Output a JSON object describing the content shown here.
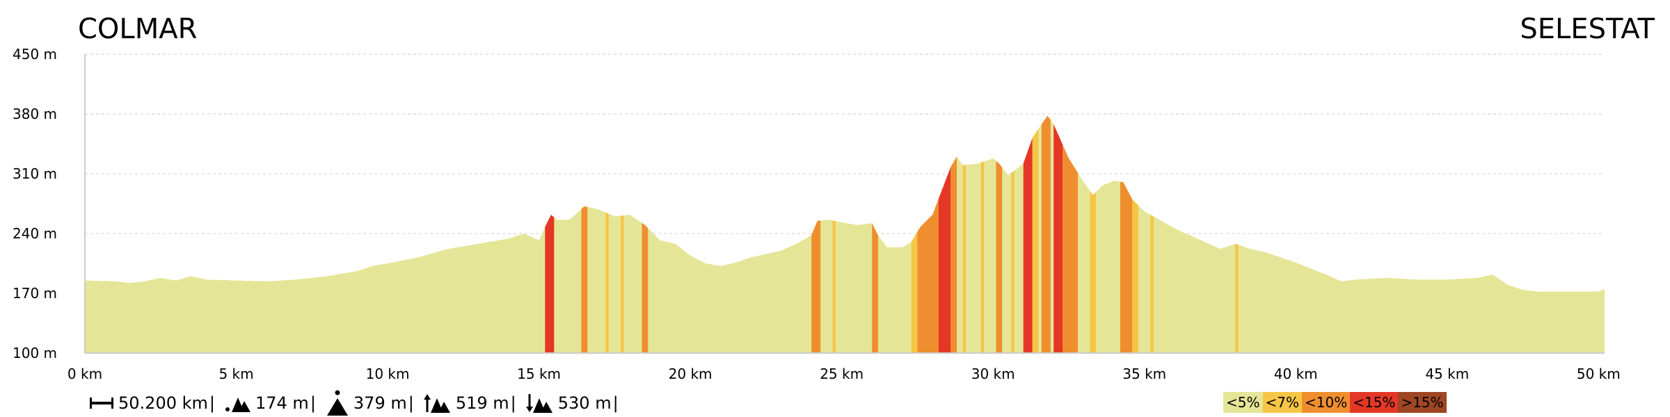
{
  "header": {
    "start": "COLMAR",
    "end": "SELESTAT"
  },
  "chart_data": {
    "type": "area",
    "xlabel": "",
    "ylabel": "",
    "xlim": [
      0,
      50.2
    ],
    "ylim": [
      100,
      450
    ],
    "x_ticks": [
      {
        "v": 0,
        "label": "0 km"
      },
      {
        "v": 5,
        "label": "5 km"
      },
      {
        "v": 10,
        "label": "10 km"
      },
      {
        "v": 15,
        "label": "15 km"
      },
      {
        "v": 20,
        "label": "20 km"
      },
      {
        "v": 25,
        "label": "25 km"
      },
      {
        "v": 30,
        "label": "30 km"
      },
      {
        "v": 35,
        "label": "35 km"
      },
      {
        "v": 40,
        "label": "40 km"
      },
      {
        "v": 45,
        "label": "45 km"
      },
      {
        "v": 50,
        "label": "50 km"
      }
    ],
    "y_ticks": [
      {
        "v": 100,
        "label": "100 m"
      },
      {
        "v": 170,
        "label": "170 m"
      },
      {
        "v": 240,
        "label": "240 m"
      },
      {
        "v": 310,
        "label": "310 m"
      },
      {
        "v": 380,
        "label": "380 m"
      },
      {
        "v": 450,
        "label": "450 m"
      }
    ],
    "grid": true,
    "profile": [
      [
        0,
        185
      ],
      [
        1,
        184
      ],
      [
        1.5,
        182
      ],
      [
        2,
        184
      ],
      [
        2.5,
        188
      ],
      [
        3,
        185
      ],
      [
        3.5,
        190
      ],
      [
        4,
        186
      ],
      [
        5,
        185
      ],
      [
        6,
        184
      ],
      [
        7,
        186
      ],
      [
        8,
        190
      ],
      [
        9,
        196
      ],
      [
        9.5,
        202
      ],
      [
        10,
        205
      ],
      [
        11,
        212
      ],
      [
        12,
        222
      ],
      [
        13,
        228
      ],
      [
        14,
        234
      ],
      [
        14.5,
        240
      ],
      [
        15,
        232
      ],
      [
        15.2,
        248
      ],
      [
        15.4,
        262
      ],
      [
        15.6,
        256
      ],
      [
        16,
        256
      ],
      [
        16.2,
        262
      ],
      [
        16.5,
        272
      ],
      [
        17,
        268
      ],
      [
        17.5,
        260
      ],
      [
        18,
        262
      ],
      [
        18.5,
        250
      ],
      [
        19,
        232
      ],
      [
        19.5,
        228
      ],
      [
        20,
        214
      ],
      [
        20.5,
        205
      ],
      [
        21,
        202
      ],
      [
        21.5,
        206
      ],
      [
        22,
        212
      ],
      [
        23,
        220
      ],
      [
        23.5,
        228
      ],
      [
        24,
        238
      ],
      [
        24.2,
        255
      ],
      [
        24.6,
        256
      ],
      [
        25,
        253
      ],
      [
        25.5,
        250
      ],
      [
        26,
        252
      ],
      [
        26.2,
        238
      ],
      [
        26.5,
        224
      ],
      [
        27,
        224
      ],
      [
        27.3,
        230
      ],
      [
        27.6,
        248
      ],
      [
        28,
        262
      ],
      [
        28.3,
        290
      ],
      [
        28.6,
        318
      ],
      [
        28.8,
        330
      ],
      [
        29,
        320
      ],
      [
        29.5,
        322
      ],
      [
        30,
        328
      ],
      [
        30.2,
        322
      ],
      [
        30.5,
        308
      ],
      [
        31,
        322
      ],
      [
        31.3,
        352
      ],
      [
        31.6,
        368
      ],
      [
        31.8,
        378
      ],
      [
        32,
        368
      ],
      [
        32.5,
        328
      ],
      [
        33,
        300
      ],
      [
        33.3,
        285
      ],
      [
        33.6,
        296
      ],
      [
        34,
        302
      ],
      [
        34.3,
        300
      ],
      [
        34.6,
        280
      ],
      [
        35,
        266
      ],
      [
        35.5,
        256
      ],
      [
        36,
        246
      ],
      [
        36.5,
        238
      ],
      [
        37,
        230
      ],
      [
        37.5,
        222
      ],
      [
        38,
        228
      ],
      [
        38.5,
        222
      ],
      [
        39,
        218
      ],
      [
        40,
        206
      ],
      [
        41,
        192
      ],
      [
        41.5,
        184
      ],
      [
        42,
        186
      ],
      [
        43,
        188
      ],
      [
        44,
        186
      ],
      [
        45,
        186
      ],
      [
        46,
        188
      ],
      [
        46.5,
        192
      ],
      [
        47,
        180
      ],
      [
        47.5,
        174
      ],
      [
        48,
        172
      ],
      [
        49,
        172
      ],
      [
        50,
        172
      ],
      [
        50.2,
        175
      ]
    ],
    "segments": [
      {
        "x0": 15.2,
        "x1": 15.5,
        "class": "<15%"
      },
      {
        "x0": 16.4,
        "x1": 16.6,
        "class": "<10%"
      },
      {
        "x0": 17.2,
        "x1": 17.3,
        "class": "<7%"
      },
      {
        "x0": 17.7,
        "x1": 17.8,
        "class": "<7%"
      },
      {
        "x0": 18.4,
        "x1": 18.6,
        "class": "<10%"
      },
      {
        "x0": 24.0,
        "x1": 24.3,
        "class": "<10%"
      },
      {
        "x0": 24.7,
        "x1": 24.8,
        "class": "<7%"
      },
      {
        "x0": 26.0,
        "x1": 26.2,
        "class": "<10%"
      },
      {
        "x0": 27.3,
        "x1": 27.5,
        "class": "<7%"
      },
      {
        "x0": 27.5,
        "x1": 27.8,
        "class": "<10%"
      },
      {
        "x0": 27.8,
        "x1": 28.2,
        "class": "<10%"
      },
      {
        "x0": 28.2,
        "x1": 28.6,
        "class": "<15%"
      },
      {
        "x0": 28.6,
        "x1": 28.8,
        "class": "<10%"
      },
      {
        "x0": 29.0,
        "x1": 29.1,
        "class": "<7%"
      },
      {
        "x0": 29.6,
        "x1": 29.7,
        "class": "<7%"
      },
      {
        "x0": 30.1,
        "x1": 30.3,
        "class": "<10%"
      },
      {
        "x0": 30.6,
        "x1": 30.7,
        "class": "<7%"
      },
      {
        "x0": 31.0,
        "x1": 31.3,
        "class": "<15%"
      },
      {
        "x0": 31.3,
        "x1": 31.5,
        "class": "<7%"
      },
      {
        "x0": 31.6,
        "x1": 31.9,
        "class": "<10%"
      },
      {
        "x0": 32.0,
        "x1": 32.3,
        "class": "<15%"
      },
      {
        "x0": 32.3,
        "x1": 32.8,
        "class": "<10%"
      },
      {
        "x0": 33.2,
        "x1": 33.4,
        "class": "<7%"
      },
      {
        "x0": 34.2,
        "x1": 34.6,
        "class": "<10%"
      },
      {
        "x0": 34.6,
        "x1": 34.8,
        "class": "<7%"
      },
      {
        "x0": 35.2,
        "x1": 35.3,
        "class": "<7%"
      },
      {
        "x0": 38.0,
        "x1": 38.1,
        "class": "<7%"
      }
    ]
  },
  "stats": {
    "distance": "50.200 km",
    "min_alt": "174 m",
    "max_alt": "379 m",
    "ascent": "519 m",
    "descent": "530 m"
  },
  "legend": [
    {
      "label": "<5%",
      "color": "#e5e597"
    },
    {
      "label": "<7%",
      "color": "#f5c545"
    },
    {
      "label": "<10%",
      "color": "#ef8e2f"
    },
    {
      "label": "<15%",
      "color": "#e43725"
    },
    {
      "label": ">15%",
      "color": "#9e4623"
    }
  ],
  "colors": {
    "base": "#e5e597",
    "grid": "#dddddd",
    "axis": "#cccccc"
  }
}
